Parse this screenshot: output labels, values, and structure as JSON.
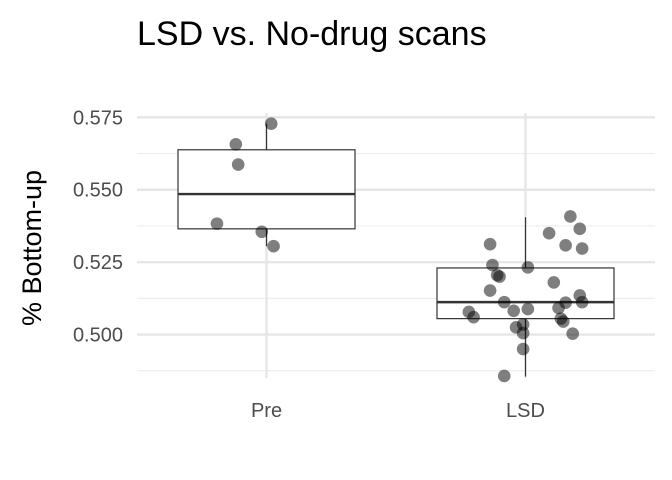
{
  "chart_data": {
    "type": "boxplot",
    "title": "LSD vs. No-drug scans",
    "xlabel": "",
    "ylabel": "% Bottom-up",
    "categories": [
      "Pre",
      "LSD"
    ],
    "ylim": [
      0.485,
      0.5765
    ],
    "yticks": [
      0.5,
      0.525,
      0.55,
      0.575
    ],
    "ytick_labels": [
      "0.500",
      "0.525",
      "0.550",
      "0.575"
    ],
    "grid": true,
    "legend": "none",
    "boxes": [
      {
        "category": "Pre",
        "lower_whisker": 0.5305,
        "q1": 0.5365,
        "median": 0.5485,
        "q3": 0.5638,
        "upper_whisker": 0.5728
      },
      {
        "category": "LSD",
        "lower_whisker": 0.4855,
        "q1": 0.5055,
        "median": 0.5112,
        "q3": 0.523,
        "upper_whisker": 0.5405
      }
    ],
    "points": [
      {
        "category": "Pre",
        "jitter": 0.02,
        "y": 0.5728
      },
      {
        "category": "Pre",
        "jitter": -0.13,
        "y": 0.5657
      },
      {
        "category": "Pre",
        "jitter": -0.12,
        "y": 0.5587
      },
      {
        "category": "Pre",
        "jitter": -0.21,
        "y": 0.5383
      },
      {
        "category": "Pre",
        "jitter": -0.02,
        "y": 0.5355
      },
      {
        "category": "Pre",
        "jitter": 0.03,
        "y": 0.5305
      },
      {
        "category": "LSD",
        "jitter": 0.19,
        "y": 0.5408
      },
      {
        "category": "LSD",
        "jitter": 0.23,
        "y": 0.5365
      },
      {
        "category": "LSD",
        "jitter": 0.1,
        "y": 0.535
      },
      {
        "category": "LSD",
        "jitter": 0.17,
        "y": 0.5308
      },
      {
        "category": "LSD",
        "jitter": -0.15,
        "y": 0.5312
      },
      {
        "category": "LSD",
        "jitter": 0.24,
        "y": 0.5297
      },
      {
        "category": "LSD",
        "jitter": -0.14,
        "y": 0.524
      },
      {
        "category": "LSD",
        "jitter": 0.01,
        "y": 0.5232
      },
      {
        "category": "LSD",
        "jitter": -0.12,
        "y": 0.5205
      },
      {
        "category": "LSD",
        "jitter": -0.11,
        "y": 0.52
      },
      {
        "category": "LSD",
        "jitter": 0.12,
        "y": 0.518
      },
      {
        "category": "LSD",
        "jitter": -0.15,
        "y": 0.5152
      },
      {
        "category": "LSD",
        "jitter": 0.23,
        "y": 0.5135
      },
      {
        "category": "LSD",
        "jitter": 0.24,
        "y": 0.5112
      },
      {
        "category": "LSD",
        "jitter": -0.09,
        "y": 0.5112
      },
      {
        "category": "LSD",
        "jitter": 0.17,
        "y": 0.511
      },
      {
        "category": "LSD",
        "jitter": 0.14,
        "y": 0.5092
      },
      {
        "category": "LSD",
        "jitter": -0.05,
        "y": 0.5082
      },
      {
        "category": "LSD",
        "jitter": 0.01,
        "y": 0.5088
      },
      {
        "category": "LSD",
        "jitter": -0.24,
        "y": 0.5078
      },
      {
        "category": "LSD",
        "jitter": -0.22,
        "y": 0.506
      },
      {
        "category": "LSD",
        "jitter": 0.15,
        "y": 0.5055
      },
      {
        "category": "LSD",
        "jitter": 0.16,
        "y": 0.5045
      },
      {
        "category": "LSD",
        "jitter": -0.01,
        "y": 0.5035
      },
      {
        "category": "LSD",
        "jitter": -0.04,
        "y": 0.5025
      },
      {
        "category": "LSD",
        "jitter": -0.01,
        "y": 0.5005
      },
      {
        "category": "LSD",
        "jitter": 0.2,
        "y": 0.5003
      },
      {
        "category": "LSD",
        "jitter": -0.01,
        "y": 0.495
      },
      {
        "category": "LSD",
        "jitter": -0.09,
        "y": 0.4857
      }
    ]
  }
}
